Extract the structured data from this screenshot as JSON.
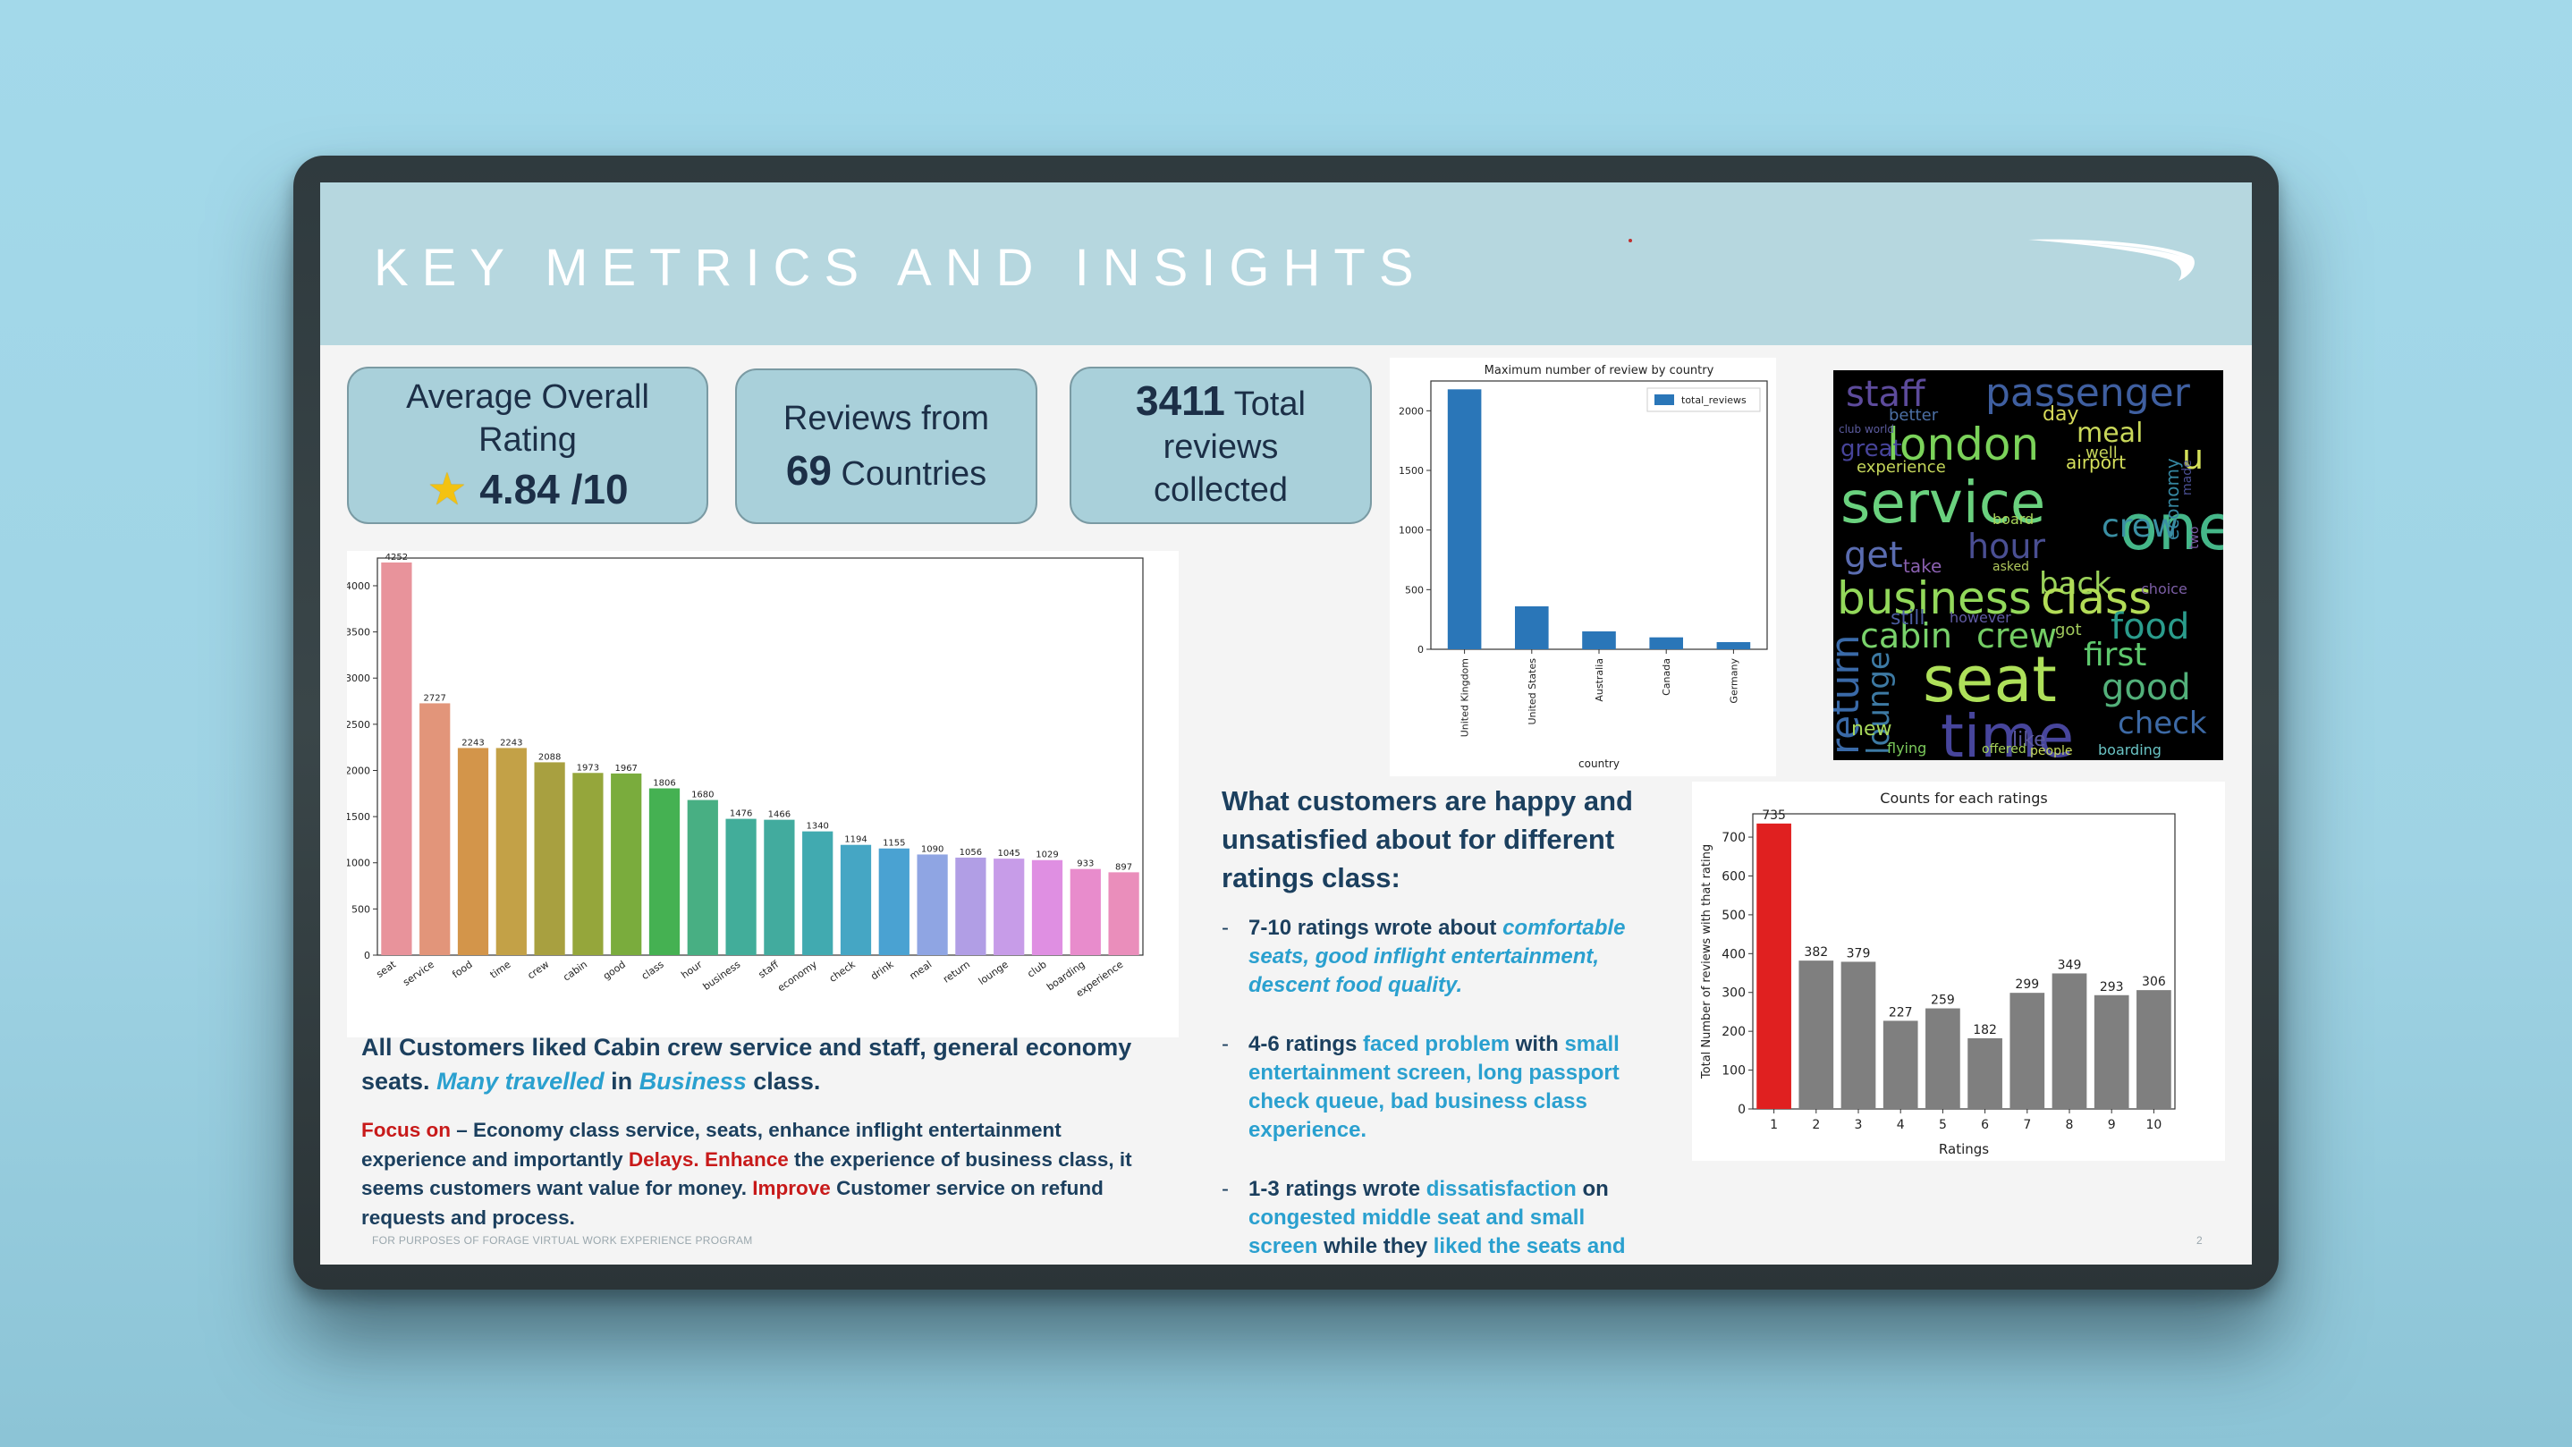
{
  "slide": {
    "title": "KEY METRICS AND INSIGHTS",
    "footer": "FOR PURPOSES OF FORAGE VIRTUAL WORK EXPERIENCE PROGRAM",
    "page_number": "2"
  },
  "metrics": {
    "rating": {
      "line1": "Average Overall",
      "line2": "Rating",
      "value": "4.84 /10",
      "icon": "star-icon"
    },
    "countries": {
      "line1": "Reviews from",
      "value": "69",
      "suffix": "Countries"
    },
    "reviews": {
      "value": "3411",
      "suffix": "Total",
      "line2": "reviews",
      "line3": "collected"
    }
  },
  "insights": {
    "liked_1": "All Customers liked Cabin crew service and staff, general economy seats.",
    "liked_2": "Many travelled",
    "liked_3": "in",
    "liked_4": "Business",
    "liked_5": "class.",
    "focus_label": "Focus on",
    "focus_text_1": "– Economy class service, seats, enhance inflight entertainment experience and importantly",
    "delays": "Delays.",
    "enhance": "Enhance",
    "focus_text_2": "the experience of business class, it seems customers want value for money.",
    "improve": "Improve",
    "focus_text_3": "Customer service on refund requests and process."
  },
  "ratings_insight": {
    "heading": "What customers are happy and unsatisfied about for different ratings class:",
    "b1_a": "7-10 ratings wrote about",
    "b1_b": "comfortable seats, good inflight entertainment, descent food quality.",
    "b2_a": "4-6 ratings",
    "b2_b": "faced problem",
    "b2_c": "with",
    "b2_d": "small entertainment screen, long passport check queue, bad business class experience.",
    "b3_a": "1-3 ratings wrote",
    "b3_b": "dissatisfaction",
    "b3_c": "on",
    "b3_d": "congested middle seat and small screen",
    "b3_e": "while they",
    "b3_f": "liked the seats and the food",
    "b3_g": "."
  },
  "wordcloud": {
    "words": [
      "staff",
      "passenger",
      "london",
      "meal",
      "service",
      "one",
      "u",
      "get",
      "crew",
      "hour",
      "back",
      "business",
      "class",
      "cabin",
      "crew",
      "food",
      "return",
      "first",
      "seat",
      "good",
      "lounge",
      "time",
      "check",
      "new",
      "flying",
      "offered",
      "people",
      "boarding",
      "experience",
      "airport",
      "day",
      "better",
      "great",
      "economy",
      "board",
      "take",
      "asked",
      "still",
      "however",
      "well",
      "like",
      "club world",
      "choice",
      "two",
      "made",
      "got"
    ]
  },
  "chart_data": [
    {
      "type": "bar",
      "title": "",
      "xlabel": "",
      "ylabel": "",
      "categories": [
        "seat",
        "service",
        "food",
        "time",
        "crew",
        "cabin",
        "good",
        "class",
        "hour",
        "business",
        "staff",
        "economy",
        "check",
        "drink",
        "meal",
        "return",
        "lounge",
        "club",
        "boarding",
        "experience"
      ],
      "values": [
        4252,
        2727,
        2243,
        2243,
        2088,
        1973,
        1967,
        1806,
        1680,
        1476,
        1466,
        1340,
        1194,
        1155,
        1090,
        1056,
        1045,
        1029,
        933,
        897
      ],
      "ylim": [
        0,
        4300
      ],
      "yticks": [
        0,
        500,
        1000,
        1500,
        2000,
        2500,
        3000,
        3500,
        4000
      ],
      "colors": [
        "#e8939b",
        "#e2957a",
        "#d3954a",
        "#c3a147",
        "#a8a040",
        "#95a63b",
        "#7aac3d",
        "#45b152",
        "#48af83",
        "#42ad9a",
        "#42ab9e",
        "#41aab0",
        "#45a6c4",
        "#4aa2d2",
        "#8fa5e3",
        "#b19ee5",
        "#c79ce8",
        "#df8fe2",
        "#e88ccc",
        "#ea8ebb"
      ],
      "data_labels": true
    },
    {
      "type": "bar",
      "title": "Maximum number of review by country",
      "xlabel": "country",
      "ylabel": "",
      "categories": [
        "United Kingdom",
        "United States",
        "Australia",
        "Canada",
        "Germany"
      ],
      "series": [
        {
          "name": "total_reviews",
          "values": [
            2180,
            360,
            150,
            100,
            60
          ]
        }
      ],
      "ylim": [
        0,
        2250
      ],
      "yticks": [
        0,
        500,
        1000,
        1500,
        2000
      ],
      "color": "#2a76b8",
      "legend": "top-right"
    },
    {
      "type": "bar",
      "title": "Counts for each ratings",
      "xlabel": "Ratings",
      "ylabel": "Total Number of reviews with that rating",
      "categories": [
        "1",
        "2",
        "3",
        "4",
        "5",
        "6",
        "7",
        "8",
        "9",
        "10"
      ],
      "values": [
        735,
        382,
        379,
        227,
        259,
        182,
        299,
        349,
        293,
        306
      ],
      "ylim": [
        0,
        760
      ],
      "yticks": [
        0,
        100,
        200,
        300,
        400,
        500,
        600,
        700
      ],
      "highlight": {
        "index": 0,
        "color": "#e02020"
      },
      "color": "#7f7f7f",
      "data_labels": true
    }
  ]
}
